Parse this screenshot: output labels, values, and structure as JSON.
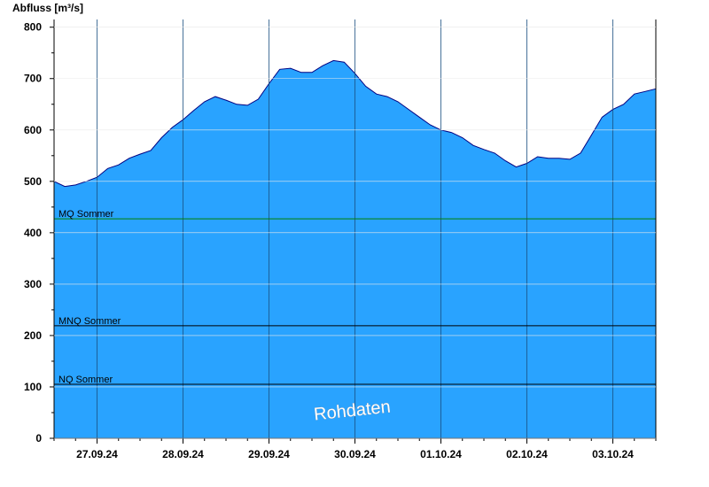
{
  "chart_data": {
    "type": "area",
    "ylabel": "Abfluss [m³/s]",
    "ylim": [
      0,
      815
    ],
    "yticks": [
      0,
      100,
      200,
      300,
      400,
      500,
      600,
      700,
      800
    ],
    "x_start": "2024-09-26T12:00",
    "x_end": "2024-10-03T12:00",
    "xticks": [
      "27.09.24",
      "28.09.24",
      "29.09.24",
      "30.09.24",
      "01.10.24",
      "02.10.24",
      "03.10.24"
    ],
    "grid": "vertical lines at day boundaries",
    "fill_color": "#29a3ff",
    "line_color": "#000080",
    "series": [
      {
        "x": [
          "2024-09-26T12:00",
          "2024-09-26T15:00",
          "2024-09-26T18:00",
          "2024-09-26T21:00",
          "2024-09-27T00:00",
          "2024-09-27T03:00",
          "2024-09-27T06:00",
          "2024-09-27T09:00",
          "2024-09-27T12:00",
          "2024-09-27T15:00",
          "2024-09-27T18:00",
          "2024-09-27T21:00",
          "2024-09-28T00:00",
          "2024-09-28T03:00",
          "2024-09-28T06:00",
          "2024-09-28T09:00",
          "2024-09-28T12:00",
          "2024-09-28T15:00",
          "2024-09-28T18:00",
          "2024-09-28T21:00",
          "2024-09-29T00:00",
          "2024-09-29T03:00",
          "2024-09-29T06:00",
          "2024-09-29T09:00",
          "2024-09-29T12:00",
          "2024-09-29T15:00",
          "2024-09-29T18:00",
          "2024-09-29T21:00",
          "2024-09-30T00:00",
          "2024-09-30T03:00",
          "2024-09-30T06:00",
          "2024-09-30T09:00",
          "2024-09-30T12:00",
          "2024-09-30T15:00",
          "2024-09-30T18:00",
          "2024-09-30T21:00",
          "2024-10-01T00:00",
          "2024-10-01T03:00",
          "2024-10-01T06:00",
          "2024-10-01T09:00",
          "2024-10-01T12:00",
          "2024-10-01T15:00",
          "2024-10-01T18:00",
          "2024-10-01T21:00",
          "2024-10-02T00:00",
          "2024-10-02T03:00",
          "2024-10-02T06:00",
          "2024-10-02T09:00",
          "2024-10-02T12:00",
          "2024-10-02T15:00",
          "2024-10-02T18:00",
          "2024-10-02T21:00",
          "2024-10-03T00:00",
          "2024-10-03T03:00",
          "2024-10-03T06:00",
          "2024-10-03T09:00",
          "2024-10-03T12:00"
        ],
        "values": [
          500,
          490,
          493,
          500,
          508,
          525,
          532,
          545,
          553,
          560,
          585,
          605,
          620,
          638,
          655,
          665,
          658,
          650,
          648,
          660,
          690,
          718,
          720,
          712,
          712,
          725,
          735,
          732,
          710,
          685,
          670,
          665,
          655,
          640,
          625,
          610,
          600,
          595,
          585,
          570,
          562,
          555,
          540,
          528,
          535,
          548,
          545,
          545,
          543,
          555,
          590,
          625,
          640,
          650,
          670,
          675,
          680
        ]
      }
    ],
    "reference_lines": [
      {
        "label": "MQ Sommer",
        "value": 427,
        "color": "#008000"
      },
      {
        "label": "MNQ Sommer",
        "value": 219,
        "color": "#000000"
      },
      {
        "label": "NQ Sommer",
        "value": 105,
        "color": "#000000"
      }
    ],
    "watermark": "Rohdaten"
  }
}
